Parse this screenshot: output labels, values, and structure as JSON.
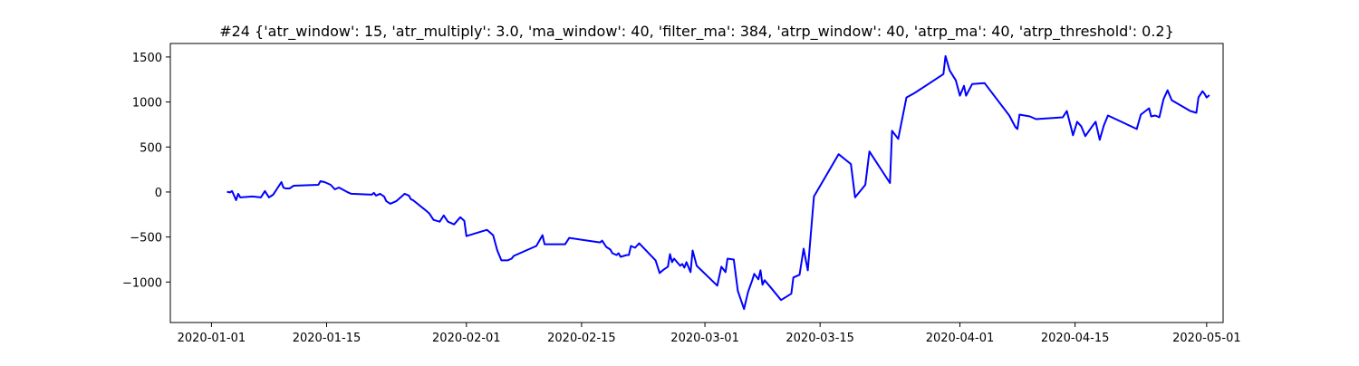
{
  "chart_data": {
    "type": "line",
    "title": "#24 {'atr_window': 15, 'atr_multiply': 3.0, 'ma_window': 40, 'filter_ma': 384, 'atrp_window': 40, 'atrp_ma': 40, 'atrp_threshold': 0.2}",
    "xlabel": "",
    "ylabel": "",
    "x_axis": "date",
    "xlim": [
      "2019-12-27",
      "2020-05-03"
    ],
    "ylim": [
      -1450,
      1650
    ],
    "grid": false,
    "legend": "none",
    "x_ticks": [
      {
        "date": "2020-01-01",
        "label": "2020-01-01"
      },
      {
        "date": "2020-01-15",
        "label": "2020-01-15"
      },
      {
        "date": "2020-02-01",
        "label": "2020-02-01"
      },
      {
        "date": "2020-02-15",
        "label": "2020-02-15"
      },
      {
        "date": "2020-03-01",
        "label": "2020-03-01"
      },
      {
        "date": "2020-03-15",
        "label": "2020-03-15"
      },
      {
        "date": "2020-04-01",
        "label": "2020-04-01"
      },
      {
        "date": "2020-04-15",
        "label": "2020-04-15"
      },
      {
        "date": "2020-05-01",
        "label": "2020-05-01"
      }
    ],
    "y_ticks": [
      {
        "value": 1500,
        "label": "1500"
      },
      {
        "value": 1000,
        "label": "1000"
      },
      {
        "value": 500,
        "label": "500"
      },
      {
        "value": 0,
        "label": "0"
      },
      {
        "value": -500,
        "label": "−500"
      },
      {
        "value": -1000,
        "label": "−1000"
      }
    ],
    "series": [
      {
        "color": "#0000ff",
        "points": [
          [
            "2020-01-03 00:00",
            0
          ],
          [
            "2020-01-03 06:00",
            -5
          ],
          [
            "2020-01-03 12:00",
            10
          ],
          [
            "2020-01-03 18:00",
            -40
          ],
          [
            "2020-01-04 00:00",
            -90
          ],
          [
            "2020-01-04 06:00",
            -20
          ],
          [
            "2020-01-04 12:00",
            -60
          ],
          [
            "2020-01-06 00:00",
            -50
          ],
          [
            "2020-01-07 00:00",
            -60
          ],
          [
            "2020-01-07 12:00",
            10
          ],
          [
            "2020-01-08 00:00",
            -60
          ],
          [
            "2020-01-08 12:00",
            -30
          ],
          [
            "2020-01-09 12:00",
            110
          ],
          [
            "2020-01-09 18:00",
            50
          ],
          [
            "2020-01-10 00:00",
            40
          ],
          [
            "2020-01-10 12:00",
            40
          ],
          [
            "2020-01-11 00:00",
            70
          ],
          [
            "2020-01-14 00:00",
            80
          ],
          [
            "2020-01-14 06:00",
            120
          ],
          [
            "2020-01-14 18:00",
            110
          ],
          [
            "2020-01-15 12:00",
            80
          ],
          [
            "2020-01-16 00:00",
            30
          ],
          [
            "2020-01-16 12:00",
            50
          ],
          [
            "2020-01-17 12:00",
            0
          ],
          [
            "2020-01-18 00:00",
            -20
          ],
          [
            "2020-01-20 12:00",
            -30
          ],
          [
            "2020-01-20 18:00",
            -10
          ],
          [
            "2020-01-21 00:00",
            -40
          ],
          [
            "2020-01-21 12:00",
            -20
          ],
          [
            "2020-01-22 00:00",
            -50
          ],
          [
            "2020-01-22 06:00",
            -100
          ],
          [
            "2020-01-22 18:00",
            -130
          ],
          [
            "2020-01-23 12:00",
            -100
          ],
          [
            "2020-01-24 12:00",
            -20
          ],
          [
            "2020-01-25 00:00",
            -40
          ],
          [
            "2020-01-25 06:00",
            -80
          ],
          [
            "2020-01-25 12:00",
            -90
          ],
          [
            "2020-01-27 00:00",
            -200
          ],
          [
            "2020-01-27 12:00",
            -240
          ],
          [
            "2020-01-28 00:00",
            -310
          ],
          [
            "2020-01-28 18:00",
            -330
          ],
          [
            "2020-01-29 06:00",
            -260
          ],
          [
            "2020-01-29 18:00",
            -330
          ],
          [
            "2020-01-30 12:00",
            -360
          ],
          [
            "2020-01-31 06:00",
            -280
          ],
          [
            "2020-01-31 18:00",
            -320
          ],
          [
            "2020-02-01 00:00",
            -490
          ],
          [
            "2020-02-03 12:00",
            -420
          ],
          [
            "2020-02-04 06:00",
            -480
          ],
          [
            "2020-02-04 18:00",
            -650
          ],
          [
            "2020-02-05 06:00",
            -760
          ],
          [
            "2020-02-06 00:00",
            -760
          ],
          [
            "2020-02-06 12:00",
            -740
          ],
          [
            "2020-02-06 18:00",
            -710
          ],
          [
            "2020-02-09 12:00",
            -600
          ],
          [
            "2020-02-10 06:00",
            -480
          ],
          [
            "2020-02-10 12:00",
            -580
          ],
          [
            "2020-02-13 00:00",
            -580
          ],
          [
            "2020-02-13 12:00",
            -510
          ],
          [
            "2020-02-17 06:00",
            -560
          ],
          [
            "2020-02-17 12:00",
            -540
          ],
          [
            "2020-02-18 00:00",
            -610
          ],
          [
            "2020-02-18 12:00",
            -640
          ],
          [
            "2020-02-18 18:00",
            -680
          ],
          [
            "2020-02-19 06:00",
            -700
          ],
          [
            "2020-02-19 12:00",
            -680
          ],
          [
            "2020-02-19 18:00",
            -720
          ],
          [
            "2020-02-20 12:00",
            -700
          ],
          [
            "2020-02-20 18:00",
            -700
          ],
          [
            "2020-02-21 00:00",
            -600
          ],
          [
            "2020-02-21 12:00",
            -620
          ],
          [
            "2020-02-22 00:00",
            -570
          ],
          [
            "2020-02-24 00:00",
            -760
          ],
          [
            "2020-02-24 12:00",
            -900
          ],
          [
            "2020-02-25 00:00",
            -860
          ],
          [
            "2020-02-25 12:00",
            -830
          ],
          [
            "2020-02-25 18:00",
            -690
          ],
          [
            "2020-02-26 00:00",
            -780
          ],
          [
            "2020-02-26 06:00",
            -740
          ],
          [
            "2020-02-27 00:00",
            -820
          ],
          [
            "2020-02-27 06:00",
            -800
          ],
          [
            "2020-02-27 12:00",
            -840
          ],
          [
            "2020-02-27 18:00",
            -780
          ],
          [
            "2020-02-28 06:00",
            -890
          ],
          [
            "2020-02-28 12:00",
            -650
          ],
          [
            "2020-02-29 00:00",
            -820
          ],
          [
            "2020-03-02 12:00",
            -1040
          ],
          [
            "2020-03-03 00:00",
            -830
          ],
          [
            "2020-03-03 12:00",
            -890
          ],
          [
            "2020-03-03 18:00",
            -740
          ],
          [
            "2020-03-04 12:00",
            -750
          ],
          [
            "2020-03-05 00:00",
            -1100
          ],
          [
            "2020-03-05 18:00",
            -1300
          ],
          [
            "2020-03-06 06:00",
            -1110
          ],
          [
            "2020-03-06 18:00",
            -980
          ],
          [
            "2020-03-07 00:00",
            -910
          ],
          [
            "2020-03-07 12:00",
            -970
          ],
          [
            "2020-03-07 18:00",
            -870
          ],
          [
            "2020-03-08 00:00",
            -1030
          ],
          [
            "2020-03-08 06:00",
            -980
          ],
          [
            "2020-03-09 00:00",
            -1060
          ],
          [
            "2020-03-10 06:00",
            -1200
          ],
          [
            "2020-03-11 12:00",
            -1130
          ],
          [
            "2020-03-11 18:00",
            -950
          ],
          [
            "2020-03-12 12:00",
            -920
          ],
          [
            "2020-03-13 00:00",
            -630
          ],
          [
            "2020-03-13 12:00",
            -870
          ],
          [
            "2020-03-14 06:00",
            -50
          ],
          [
            "2020-03-17 06:00",
            420
          ],
          [
            "2020-03-18 18:00",
            310
          ],
          [
            "2020-03-19 06:00",
            -60
          ],
          [
            "2020-03-20 12:00",
            80
          ],
          [
            "2020-03-21 00:00",
            450
          ],
          [
            "2020-03-23 12:00",
            100
          ],
          [
            "2020-03-23 18:00",
            680
          ],
          [
            "2020-03-24 12:00",
            590
          ],
          [
            "2020-03-25 12:00",
            1050
          ],
          [
            "2020-03-26 12:00",
            1100
          ],
          [
            "2020-03-30 00:00",
            1310
          ],
          [
            "2020-03-30 06:00",
            1510
          ],
          [
            "2020-03-30 18:00",
            1350
          ],
          [
            "2020-03-31 12:00",
            1240
          ],
          [
            "2020-04-01 00:00",
            1070
          ],
          [
            "2020-04-01 12:00",
            1180
          ],
          [
            "2020-04-01 18:00",
            1070
          ],
          [
            "2020-04-02 12:00",
            1200
          ],
          [
            "2020-04-04 00:00",
            1210
          ],
          [
            "2020-04-07 00:00",
            850
          ],
          [
            "2020-04-07 18:00",
            720
          ],
          [
            "2020-04-08 00:00",
            700
          ],
          [
            "2020-04-08 06:00",
            860
          ],
          [
            "2020-04-09 12:00",
            840
          ],
          [
            "2020-04-10 06:00",
            810
          ],
          [
            "2020-04-13 12:00",
            830
          ],
          [
            "2020-04-14 00:00",
            900
          ],
          [
            "2020-04-14 12:00",
            720
          ],
          [
            "2020-04-14 18:00",
            630
          ],
          [
            "2020-04-15 06:00",
            780
          ],
          [
            "2020-04-15 18:00",
            730
          ],
          [
            "2020-04-16 06:00",
            620
          ],
          [
            "2020-04-17 00:00",
            720
          ],
          [
            "2020-04-17 12:00",
            780
          ],
          [
            "2020-04-18 00:00",
            580
          ],
          [
            "2020-04-18 12:00",
            740
          ],
          [
            "2020-04-19 00:00",
            850
          ],
          [
            "2020-04-22 12:00",
            700
          ],
          [
            "2020-04-23 00:00",
            860
          ],
          [
            "2020-04-24 00:00",
            930
          ],
          [
            "2020-04-24 06:00",
            840
          ],
          [
            "2020-04-24 18:00",
            850
          ],
          [
            "2020-04-25 06:00",
            830
          ],
          [
            "2020-04-25 18:00",
            1030
          ],
          [
            "2020-04-26 06:00",
            1130
          ],
          [
            "2020-04-26 18:00",
            1020
          ],
          [
            "2020-04-29 00:00",
            900
          ],
          [
            "2020-04-29 18:00",
            880
          ],
          [
            "2020-04-30 00:00",
            1050
          ],
          [
            "2020-04-30 12:00",
            1120
          ],
          [
            "2020-04-30 18:00",
            1090
          ],
          [
            "2020-05-01 00:00",
            1050
          ],
          [
            "2020-05-01 06:00",
            1070
          ]
        ]
      }
    ]
  }
}
